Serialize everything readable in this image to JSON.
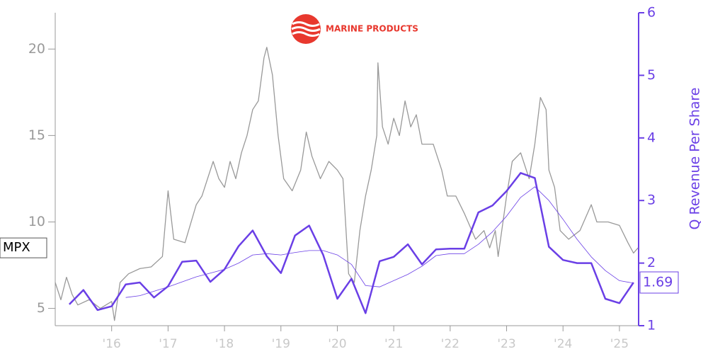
{
  "chart_data": {
    "type": "line",
    "logo_text": "MARINE PRODUCTS",
    "y2label": "Q Revenue Per Share",
    "xlim": [
      2015.0,
      2025.34
    ],
    "xticks": [
      {
        "value": 2016,
        "label": "'16"
      },
      {
        "value": 2017,
        "label": "'17"
      },
      {
        "value": 2018,
        "label": "'18"
      },
      {
        "value": 2019,
        "label": "'19"
      },
      {
        "value": 2020,
        "label": "'20"
      },
      {
        "value": 2021,
        "label": "'21"
      },
      {
        "value": 2022,
        "label": "'22"
      },
      {
        "value": 2023,
        "label": "'23"
      },
      {
        "value": 2024,
        "label": "'24"
      },
      {
        "value": 2025,
        "label": "'25"
      }
    ],
    "ylim": [
      4,
      22.1
    ],
    "yticks": [
      5,
      10,
      15,
      20
    ],
    "y2lim": [
      1,
      6
    ],
    "y2ticks": [
      1,
      2,
      3,
      4,
      5,
      6
    ],
    "grid": false,
    "series": [
      {
        "name": "MPX",
        "color": "#999999",
        "axis": "y",
        "x": [
          2015.0,
          2015.1,
          2015.2,
          2015.3,
          2015.4,
          2015.6,
          2015.8,
          2016.0,
          2016.05,
          2016.15,
          2016.3,
          2016.5,
          2016.7,
          2016.9,
          2017.0,
          2017.1,
          2017.3,
          2017.5,
          2017.6,
          2017.8,
          2017.9,
          2018.0,
          2018.1,
          2018.2,
          2018.3,
          2018.4,
          2018.5,
          2018.6,
          2018.7,
          2018.75,
          2018.85,
          2018.95,
          2019.05,
          2019.2,
          2019.35,
          2019.45,
          2019.55,
          2019.7,
          2019.85,
          2020.0,
          2020.1,
          2020.2,
          2020.3,
          2020.4,
          2020.5,
          2020.6,
          2020.7,
          2020.72,
          2020.8,
          2020.9,
          2021.0,
          2021.1,
          2021.2,
          2021.3,
          2021.4,
          2021.5,
          2021.7,
          2021.85,
          2021.95,
          2022.1,
          2022.25,
          2022.45,
          2022.6,
          2022.7,
          2022.8,
          2022.85,
          2023.0,
          2023.1,
          2023.25,
          2023.4,
          2023.5,
          2023.6,
          2023.7,
          2023.75,
          2023.85,
          2023.95,
          2024.1,
          2024.3,
          2024.5,
          2024.6,
          2024.8,
          2025.0,
          2025.15,
          2025.25,
          2025.33
        ],
        "values": [
          6.5,
          5.5,
          6.8,
          5.8,
          5.2,
          5.5,
          5.0,
          5.4,
          4.3,
          6.5,
          7.0,
          7.3,
          7.4,
          8.0,
          11.8,
          9.0,
          8.8,
          11.0,
          11.5,
          13.5,
          12.5,
          12.0,
          13.5,
          12.5,
          14.0,
          15.0,
          16.5,
          17.0,
          19.5,
          20.1,
          18.5,
          15.0,
          12.5,
          11.8,
          13.0,
          15.2,
          13.8,
          12.5,
          13.5,
          13.0,
          12.5,
          7.0,
          6.5,
          9.5,
          11.5,
          13.0,
          15.0,
          19.2,
          15.5,
          14.5,
          16.0,
          15.0,
          17.0,
          15.5,
          16.2,
          14.5,
          14.5,
          13.0,
          11.5,
          11.5,
          10.5,
          9.0,
          9.5,
          8.5,
          9.5,
          8.0,
          11.5,
          13.5,
          14.0,
          12.5,
          14.5,
          17.2,
          16.5,
          13.0,
          12.0,
          9.5,
          9.0,
          9.5,
          11.0,
          10.0,
          10.0,
          9.8,
          8.8,
          8.2,
          8.5
        ]
      },
      {
        "color": "#6a3fe6",
        "axis": "y2",
        "width": 2.5,
        "x": [
          2015.25,
          2015.5,
          2015.75,
          2016.0,
          2016.25,
          2016.5,
          2016.75,
          2017.0,
          2017.25,
          2017.5,
          2017.75,
          2018.0,
          2018.25,
          2018.5,
          2018.75,
          2019.0,
          2019.25,
          2019.5,
          2019.75,
          2020.0,
          2020.25,
          2020.5,
          2020.75,
          2021.0,
          2021.25,
          2021.5,
          2021.75,
          2022.0,
          2022.25,
          2022.5,
          2022.75,
          2023.0,
          2023.25,
          2023.5,
          2023.75,
          2024.0,
          2024.25,
          2024.5,
          2024.75,
          2025.0,
          2025.25
        ],
        "values": [
          1.34,
          1.57,
          1.25,
          1.31,
          1.66,
          1.69,
          1.45,
          1.63,
          2.02,
          2.04,
          1.7,
          1.9,
          2.27,
          2.52,
          2.11,
          1.84,
          2.44,
          2.6,
          2.13,
          1.43,
          1.75,
          1.2,
          2.03,
          2.1,
          2.3,
          1.98,
          2.22,
          2.23,
          2.23,
          2.81,
          2.92,
          3.15,
          3.44,
          3.36,
          2.26,
          2.05,
          2.0,
          2.0,
          1.43,
          1.36,
          1.69
        ]
      },
      {
        "color": "#6a3fe6",
        "axis": "y2",
        "width": 0.8,
        "x": [
          2016.25,
          2016.5,
          2016.75,
          2017.0,
          2017.25,
          2017.5,
          2017.75,
          2018.0,
          2018.25,
          2018.5,
          2018.75,
          2019.0,
          2019.25,
          2019.5,
          2019.75,
          2020.0,
          2020.25,
          2020.5,
          2020.75,
          2021.0,
          2021.25,
          2021.5,
          2021.75,
          2022.0,
          2022.25,
          2022.5,
          2022.75,
          2023.0,
          2023.25,
          2023.5,
          2023.75,
          2024.0,
          2024.25,
          2024.5,
          2024.75,
          2025.0,
          2025.25
        ],
        "values": [
          1.45,
          1.48,
          1.55,
          1.62,
          1.7,
          1.78,
          1.84,
          1.9,
          2.0,
          2.13,
          2.15,
          2.13,
          2.17,
          2.2,
          2.2,
          2.13,
          1.98,
          1.64,
          1.62,
          1.72,
          1.82,
          1.95,
          2.12,
          2.15,
          2.15,
          2.3,
          2.5,
          2.75,
          3.05,
          3.22,
          3.0,
          2.7,
          2.38,
          2.1,
          1.88,
          1.72,
          1.68
        ]
      }
    ]
  }
}
